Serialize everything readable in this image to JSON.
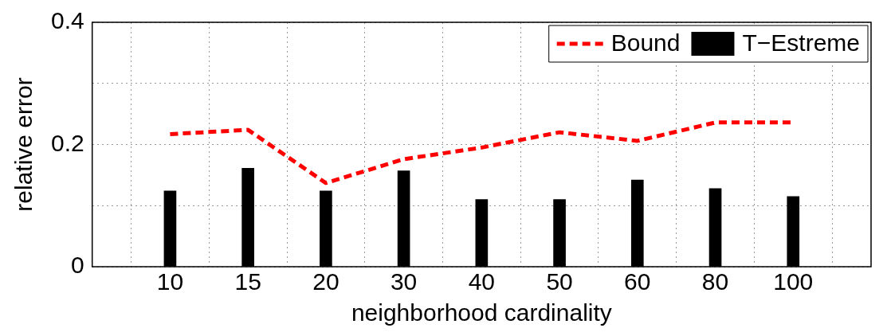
{
  "chart_data": {
    "type": "bar",
    "xlabel": "neighborhood cardinality",
    "ylabel": "relative error",
    "categories": [
      "10",
      "15",
      "20",
      "30",
      "40",
      "50",
      "60",
      "80",
      "100"
    ],
    "series": [
      {
        "name": "Bound",
        "type": "line",
        "color": "#ff0000",
        "line_style": "dashed",
        "values": [
          0.217,
          0.224,
          0.137,
          0.176,
          0.195,
          0.22,
          0.206,
          0.236,
          0.236
        ]
      },
      {
        "name": "T−Estreme",
        "color": "#000000",
        "values": [
          0.124,
          0.161,
          0.124,
          0.157,
          0.11,
          0.11,
          0.142,
          0.128,
          0.115
        ]
      }
    ],
    "ylim": [
      0,
      0.4
    ],
    "yticks": [
      0,
      {
        "value": 0.1,
        "label": null
      },
      0.2,
      {
        "value": 0.3,
        "label": null
      },
      0.4
    ],
    "grid": true,
    "legend": "top right",
    "marker": "none"
  }
}
